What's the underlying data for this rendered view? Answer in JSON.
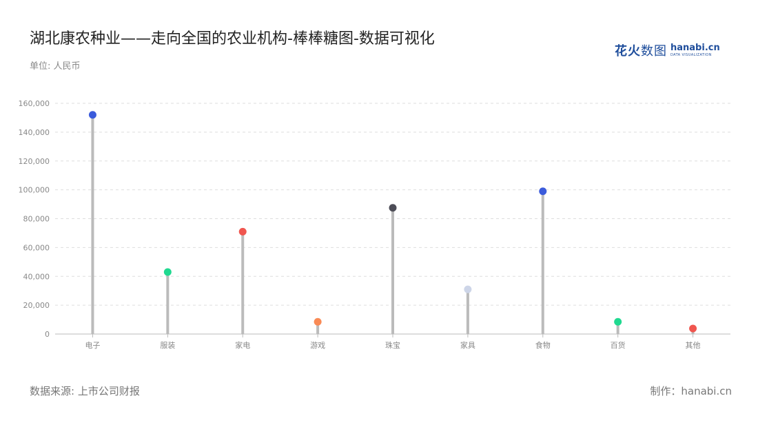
{
  "title": "湖北康农种业——走向全国的农业机构-棒棒糖图-数据可视化",
  "unit_label": "单位: 人民币",
  "logo": {
    "cn_bold": "花火",
    "cn_light": "数图",
    "en": "hanabi.cn",
    "sub": "DATA VISUALIZATION"
  },
  "footer": {
    "source": "数据来源: 上市公司财报",
    "maker": "制作：hanabi.cn"
  },
  "chart_data": {
    "type": "lollipop",
    "title": "湖北康农种业——走向全国的农业机构-棒棒糖图-数据可视化",
    "ylabel": "单位: 人民币",
    "ylim": [
      0,
      160000
    ],
    "y_ticks": [
      "0",
      "20,000",
      "40,000",
      "60,000",
      "80,000",
      "100,000",
      "120,000",
      "140,000",
      "160,000"
    ],
    "y_tick_values": [
      0,
      20000,
      40000,
      60000,
      80000,
      100000,
      120000,
      140000,
      160000
    ],
    "grid": true,
    "categories": [
      "电子",
      "服装",
      "家电",
      "游戏",
      "珠宝",
      "家具",
      "食物",
      "百货",
      "其他"
    ],
    "values": [
      152000,
      43000,
      71000,
      8500,
      87500,
      31000,
      99000,
      8500,
      3800
    ],
    "colors": [
      "#3b5bdb",
      "#20d990",
      "#f0564f",
      "#f98a55",
      "#4d4d57",
      "#cdd5e8",
      "#3b5bdb",
      "#20d990",
      "#f0564f"
    ],
    "stem_color": "#bbbbbb"
  }
}
